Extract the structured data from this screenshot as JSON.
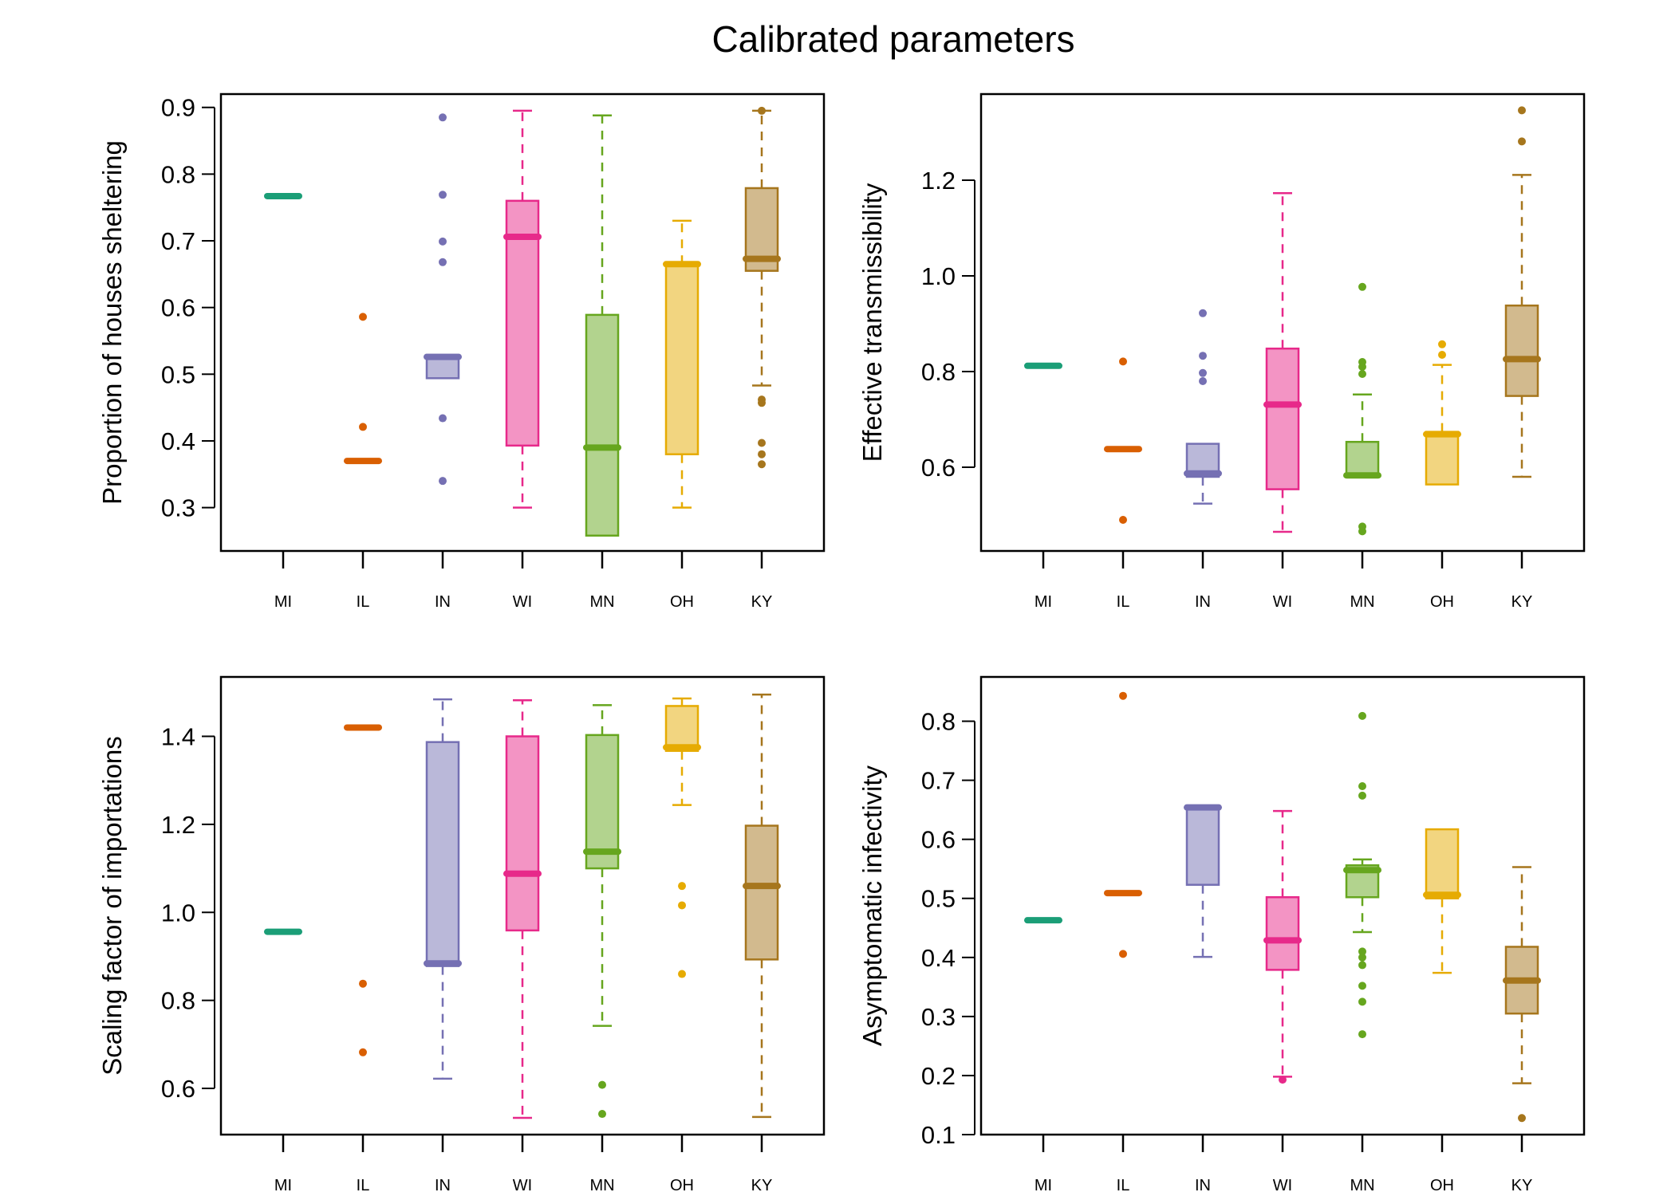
{
  "title": "Calibrated parameters",
  "palette": {
    "MI": {
      "line": "#1b9e77",
      "fill": "#8dcfbb"
    },
    "IL": {
      "line": "#d95f02",
      "fill": "#ecaf80"
    },
    "IN": {
      "line": "#7570b3",
      "fill": "#bab8d9"
    },
    "WI": {
      "line": "#e7298a",
      "fill": "#f394c4"
    },
    "MN": {
      "line": "#66a61e",
      "fill": "#b2d38e"
    },
    "OH": {
      "line": "#e6ab02",
      "fill": "#f2d580"
    },
    "KY": {
      "line": "#a6761d",
      "fill": "#d2ba8e"
    }
  },
  "chart_data": [
    {
      "type": "box",
      "title": "",
      "ylabel": "Proportion of houses sheltering",
      "ylim": [
        0.235,
        0.92
      ],
      "yticks": [
        "0.3",
        "0.4",
        "0.5",
        "0.6",
        "0.7",
        "0.8",
        "0.9"
      ],
      "categories": [
        "MI",
        "IL",
        "IN",
        "WI",
        "MN",
        "OH",
        "KY"
      ],
      "boxes": [
        {
          "name": "MI",
          "whisker_low": 0.767,
          "q1": 0.767,
          "median": 0.767,
          "q3": 0.767,
          "whisker_high": 0.767,
          "outliers": []
        },
        {
          "name": "IL",
          "whisker_low": 0.37,
          "q1": 0.37,
          "median": 0.37,
          "q3": 0.37,
          "whisker_high": 0.37,
          "outliers": [
            0.586,
            0.421
          ]
        },
        {
          "name": "IN",
          "whisker_low": 0.494,
          "q1": 0.494,
          "median": 0.526,
          "q3": 0.529,
          "whisker_high": 0.529,
          "outliers": [
            0.885,
            0.769,
            0.699,
            0.668,
            0.434,
            0.34
          ]
        },
        {
          "name": "WI",
          "whisker_low": 0.3,
          "q1": 0.393,
          "median": 0.706,
          "q3": 0.76,
          "whisker_high": 0.895,
          "outliers": []
        },
        {
          "name": "MN",
          "whisker_low": 0.258,
          "q1": 0.258,
          "median": 0.39,
          "q3": 0.589,
          "whisker_high": 0.888,
          "outliers": []
        },
        {
          "name": "OH",
          "whisker_low": 0.3,
          "q1": 0.38,
          "median": 0.665,
          "q3": 0.665,
          "whisker_high": 0.73,
          "outliers": []
        },
        {
          "name": "KY",
          "whisker_low": 0.483,
          "q1": 0.655,
          "median": 0.673,
          "q3": 0.779,
          "whisker_high": 0.895,
          "outliers": [
            0.895,
            0.462,
            0.457,
            0.397,
            0.38,
            0.365
          ]
        }
      ]
    },
    {
      "type": "box",
      "title": "",
      "ylabel": "Effective transmissibility",
      "ylim": [
        0.425,
        1.38
      ],
      "yticks": [
        "0.6",
        "0.8",
        "1.0",
        "1.2"
      ],
      "categories": [
        "MI",
        "IL",
        "IN",
        "WI",
        "MN",
        "OH",
        "KY"
      ],
      "boxes": [
        {
          "name": "MI",
          "whisker_low": 0.812,
          "q1": 0.812,
          "median": 0.812,
          "q3": 0.812,
          "whisker_high": 0.812,
          "outliers": []
        },
        {
          "name": "IL",
          "whisker_low": 0.638,
          "q1": 0.638,
          "median": 0.638,
          "q3": 0.638,
          "whisker_high": 0.638,
          "outliers": [
            0.821,
            0.49
          ]
        },
        {
          "name": "IN",
          "whisker_low": 0.524,
          "q1": 0.58,
          "median": 0.587,
          "q3": 0.649,
          "whisker_high": 0.649,
          "outliers": [
            0.922,
            0.833,
            0.797,
            0.78
          ]
        },
        {
          "name": "WI",
          "whisker_low": 0.465,
          "q1": 0.554,
          "median": 0.731,
          "q3": 0.848,
          "whisker_high": 1.173,
          "outliers": []
        },
        {
          "name": "MN",
          "whisker_low": 0.58,
          "q1": 0.58,
          "median": 0.583,
          "q3": 0.653,
          "whisker_high": 0.752,
          "outliers": [
            0.977,
            0.82,
            0.81,
            0.795,
            0.476,
            0.466
          ]
        },
        {
          "name": "OH",
          "whisker_low": 0.564,
          "q1": 0.564,
          "median": 0.669,
          "q3": 0.674,
          "whisker_high": 0.814,
          "outliers": [
            0.857,
            0.835
          ]
        },
        {
          "name": "KY",
          "whisker_low": 0.58,
          "q1": 0.749,
          "median": 0.826,
          "q3": 0.938,
          "whisker_high": 1.211,
          "outliers": [
            1.346,
            1.281
          ]
        }
      ]
    },
    {
      "type": "box",
      "title": "",
      "ylabel": "Scaling factor of importations",
      "ylim": [
        0.495,
        1.535
      ],
      "yticks": [
        "0.6",
        "0.8",
        "1.0",
        "1.2",
        "1.4"
      ],
      "categories": [
        "MI",
        "IL",
        "IN",
        "WI",
        "MN",
        "OH",
        "KY"
      ],
      "boxes": [
        {
          "name": "MI",
          "whisker_low": 0.956,
          "q1": 0.956,
          "median": 0.956,
          "q3": 0.956,
          "whisker_high": 0.956,
          "outliers": []
        },
        {
          "name": "IL",
          "whisker_low": 1.42,
          "q1": 1.42,
          "median": 1.42,
          "q3": 1.42,
          "whisker_high": 1.42,
          "outliers": [
            0.838,
            0.682
          ]
        },
        {
          "name": "IN",
          "whisker_low": 0.622,
          "q1": 0.878,
          "median": 0.884,
          "q3": 1.387,
          "whisker_high": 1.484,
          "outliers": []
        },
        {
          "name": "WI",
          "whisker_low": 0.533,
          "q1": 0.959,
          "median": 1.088,
          "q3": 1.4,
          "whisker_high": 1.482,
          "outliers": []
        },
        {
          "name": "MN",
          "whisker_low": 0.742,
          "q1": 1.1,
          "median": 1.138,
          "q3": 1.403,
          "whisker_high": 1.471,
          "outliers": [
            0.608,
            0.542
          ]
        },
        {
          "name": "OH",
          "whisker_low": 1.244,
          "q1": 1.367,
          "median": 1.375,
          "q3": 1.469,
          "whisker_high": 1.486,
          "outliers": [
            1.06,
            1.016,
            0.86
          ]
        },
        {
          "name": "KY",
          "whisker_low": 0.535,
          "q1": 0.893,
          "median": 1.06,
          "q3": 1.197,
          "whisker_high": 1.495,
          "outliers": []
        }
      ]
    },
    {
      "type": "box",
      "title": "",
      "ylabel": "Asymptomatic infectivity",
      "ylim": [
        0.1,
        0.875
      ],
      "yticks": [
        "0.1",
        "0.2",
        "0.3",
        "0.4",
        "0.5",
        "0.6",
        "0.7",
        "0.8"
      ],
      "categories": [
        "MI",
        "IL",
        "IN",
        "WI",
        "MN",
        "OH",
        "KY"
      ],
      "boxes": [
        {
          "name": "MI",
          "whisker_low": 0.463,
          "q1": 0.463,
          "median": 0.463,
          "q3": 0.463,
          "whisker_high": 0.463,
          "outliers": []
        },
        {
          "name": "IL",
          "whisker_low": 0.509,
          "q1": 0.509,
          "median": 0.509,
          "q3": 0.509,
          "whisker_high": 0.509,
          "outliers": [
            0.843,
            0.406
          ]
        },
        {
          "name": "IN",
          "whisker_low": 0.401,
          "q1": 0.523,
          "median": 0.654,
          "q3": 0.657,
          "whisker_high": 0.657,
          "outliers": []
        },
        {
          "name": "WI",
          "whisker_low": 0.198,
          "q1": 0.379,
          "median": 0.429,
          "q3": 0.502,
          "whisker_high": 0.648,
          "outliers": [
            0.193
          ]
        },
        {
          "name": "MN",
          "whisker_low": 0.443,
          "q1": 0.502,
          "median": 0.548,
          "q3": 0.556,
          "whisker_high": 0.566,
          "outliers": [
            0.809,
            0.69,
            0.674,
            0.41,
            0.4,
            0.387,
            0.352,
            0.325,
            0.27
          ]
        },
        {
          "name": "OH",
          "whisker_low": 0.374,
          "q1": 0.5,
          "median": 0.506,
          "q3": 0.617,
          "whisker_high": 0.617,
          "outliers": []
        },
        {
          "name": "KY",
          "whisker_low": 0.187,
          "q1": 0.305,
          "median": 0.361,
          "q3": 0.418,
          "whisker_high": 0.553,
          "outliers": [
            0.128
          ]
        }
      ]
    }
  ]
}
